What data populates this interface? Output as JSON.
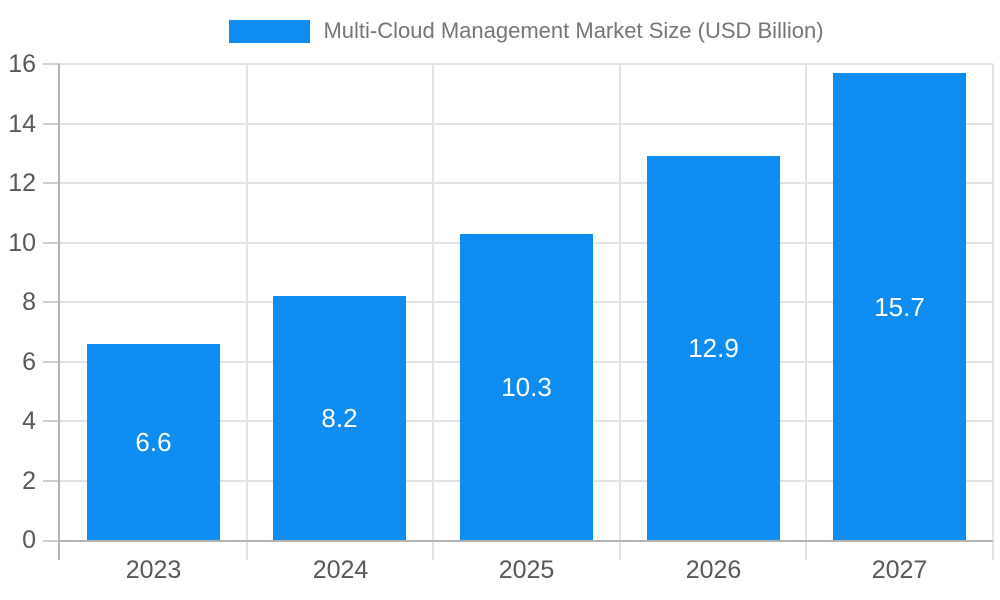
{
  "chart_data": {
    "type": "bar",
    "title": "Multi-Cloud Management Market Size (USD Billion)",
    "categories": [
      "2023",
      "2024",
      "2025",
      "2026",
      "2027"
    ],
    "values": [
      6.6,
      8.2,
      10.3,
      12.9,
      15.7
    ],
    "value_labels": [
      "6.6",
      "8.2",
      "10.3",
      "12.9",
      "15.7"
    ],
    "xlabel": "",
    "ylabel": "",
    "ylim": [
      0,
      16
    ],
    "yticks": [
      0,
      2,
      4,
      6,
      8,
      10,
      12,
      14,
      16
    ],
    "ytick_labels": [
      "0",
      "2",
      "4",
      "6",
      "8",
      "10",
      "12",
      "14",
      "16"
    ],
    "grid": true,
    "legend_position": "top-center",
    "colors": {
      "bar": "#0d8df2",
      "value_label": "#ffffff",
      "axis_label": "#58585a",
      "title": "#757575",
      "gridline": "#e3e3e3",
      "tick": "#cfcfcf",
      "axis_line": "#b3b3b3"
    }
  }
}
